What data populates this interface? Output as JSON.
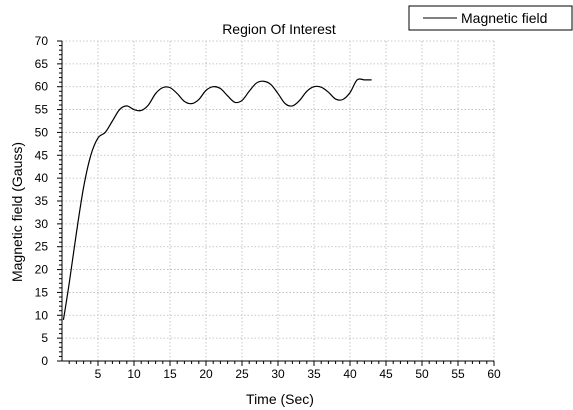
{
  "chart_data": {
    "type": "line",
    "title": "Region Of Interest",
    "xlabel": "Time (Sec)",
    "ylabel": "Magnetic field (Gauss)",
    "xlim": [
      0,
      60
    ],
    "ylim": [
      0,
      70
    ],
    "x_ticks": [
      5,
      10,
      15,
      20,
      25,
      30,
      35,
      40,
      45,
      50,
      55,
      60
    ],
    "y_ticks": [
      0,
      5,
      10,
      15,
      20,
      25,
      30,
      35,
      40,
      45,
      50,
      55,
      60,
      65,
      70
    ],
    "grid": "dotted",
    "legend_position": "top-right",
    "series": [
      {
        "name": "Magnetic field",
        "color": "#000000",
        "x": [
          0.2,
          1,
          2,
          3,
          4,
          5,
          6,
          7,
          8,
          9,
          10,
          11,
          12,
          13,
          14,
          15,
          16,
          17,
          18,
          19,
          20,
          21,
          22,
          23,
          24,
          25,
          26,
          27,
          28,
          29,
          30,
          31,
          32,
          33,
          34,
          35,
          36,
          37,
          38,
          39,
          40,
          41,
          42,
          43
        ],
        "y": [
          9,
          17,
          28,
          38,
          45,
          48.8,
          50,
          52.5,
          55,
          55.8,
          55,
          54.8,
          56,
          58.5,
          59.8,
          59.8,
          58.5,
          56.8,
          56.3,
          57.2,
          59.2,
          60,
          59.6,
          58,
          56.6,
          57,
          59,
          60.8,
          61.2,
          60.5,
          58.5,
          56.3,
          55.8,
          57,
          59,
          60,
          59.9,
          58.8,
          57.3,
          57.2,
          58.7,
          61.5,
          61.5,
          61.5
        ]
      }
    ]
  }
}
